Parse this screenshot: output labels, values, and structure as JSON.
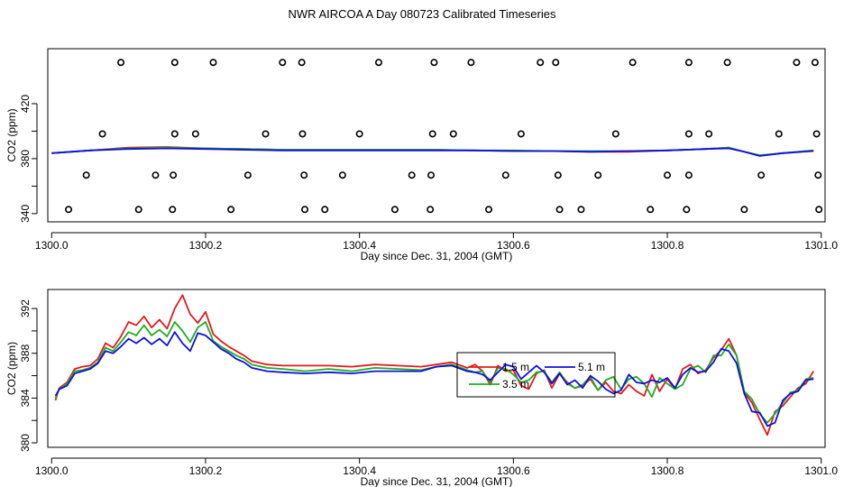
{
  "title": "NWR AIRCOA A  Day 080723  Calibrated Timeseries",
  "colors": {
    "red": "#e31a1c",
    "green": "#1fae1f",
    "blue": "#1010dd",
    "marker": "#000000"
  },
  "chart_data": [
    {
      "type": "line",
      "panel": "top",
      "xlabel": "Day since Dec. 31, 2004 (GMT)",
      "ylabel": "CO2 (ppm)",
      "xlim": [
        1299.995,
        1301.005
      ],
      "ylim": [
        334,
        460
      ],
      "xticks": [
        1300.0,
        1300.2,
        1300.4,
        1300.6,
        1300.8,
        1301.0
      ],
      "xtick_labels": [
        "1300.0",
        "1300.2",
        "1300.4",
        "1300.6",
        "1300.8",
        "1301.0"
      ],
      "yticks": [
        340,
        360,
        380,
        400,
        420
      ],
      "ytick_labels": [
        "340",
        "380",
        "420"
      ],
      "ytick_label_values": [
        340,
        380,
        420
      ],
      "series": [
        {
          "name": "red",
          "color": "red",
          "x": [
            1300.0,
            1300.05,
            1300.1,
            1300.15,
            1300.2,
            1300.3,
            1300.4,
            1300.5,
            1300.55,
            1300.6,
            1300.65,
            1300.7,
            1300.75,
            1300.8,
            1300.85,
            1300.88,
            1300.9,
            1300.92,
            1300.95,
            1300.99
          ],
          "y": [
            384,
            386,
            388,
            388.5,
            387.5,
            386.5,
            386.5,
            386.5,
            386,
            385.5,
            385.5,
            385,
            385,
            386,
            387,
            388,
            385,
            382,
            384,
            386
          ]
        },
        {
          "name": "green",
          "color": "green",
          "x": [
            1300.0,
            1300.05,
            1300.1,
            1300.15,
            1300.2,
            1300.3,
            1300.4,
            1300.5,
            1300.55,
            1300.6,
            1300.65,
            1300.7,
            1300.75,
            1300.8,
            1300.85,
            1300.88,
            1300.9,
            1300.92,
            1300.95,
            1300.99
          ],
          "y": [
            384,
            386,
            387.5,
            388,
            387.5,
            386.5,
            386.5,
            386.5,
            386,
            386,
            385.5,
            385.5,
            385.5,
            386,
            387,
            388,
            385,
            382.5,
            384,
            386
          ]
        },
        {
          "name": "blue",
          "color": "blue",
          "x": [
            1300.0,
            1300.05,
            1300.1,
            1300.15,
            1300.2,
            1300.3,
            1300.4,
            1300.5,
            1300.55,
            1300.6,
            1300.65,
            1300.7,
            1300.75,
            1300.8,
            1300.85,
            1300.88,
            1300.9,
            1300.92,
            1300.95,
            1300.99
          ],
          "y": [
            384,
            386,
            387,
            387.5,
            387,
            386,
            386,
            386,
            386,
            385.5,
            385.5,
            385,
            385.5,
            386,
            387,
            387.5,
            385,
            382,
            384,
            385.5
          ]
        }
      ],
      "markers": {
        "shape": "open-circle",
        "rows": [
          {
            "y": 450,
            "x": [
              1300.09,
              1300.16,
              1300.21,
              1300.3,
              1300.325,
              1300.425,
              1300.497,
              1300.545,
              1300.635,
              1300.655,
              1300.755,
              1300.828,
              1300.878,
              1300.968,
              1300.992
            ]
          },
          {
            "y": 398,
            "x": [
              1300.066,
              1300.16,
              1300.187,
              1300.278,
              1300.326,
              1300.4,
              1300.495,
              1300.522,
              1300.61,
              1300.733,
              1300.828,
              1300.854,
              1300.945,
              1300.994
            ]
          },
          {
            "y": 368,
            "x": [
              1300.045,
              1300.135,
              1300.158,
              1300.255,
              1300.328,
              1300.378,
              1300.468,
              1300.493,
              1300.59,
              1300.658,
              1300.71,
              1300.8,
              1300.828,
              1300.922,
              1300.996
            ]
          },
          {
            "y": 343,
            "x": [
              1300.022,
              1300.113,
              1300.157,
              1300.233,
              1300.329,
              1300.355,
              1300.446,
              1300.492,
              1300.568,
              1300.66,
              1300.688,
              1300.778,
              1300.825,
              1300.9,
              1300.997
            ]
          }
        ]
      }
    },
    {
      "type": "line",
      "panel": "bottom",
      "xlabel": "Day since Dec. 31, 2004 (GMT)",
      "ylabel": "CO2 (ppm)",
      "xlim": [
        1299.995,
        1301.005
      ],
      "ylim": [
        379.6,
        393.7
      ],
      "xticks": [
        1300.0,
        1300.2,
        1300.4,
        1300.6,
        1300.8,
        1301.0
      ],
      "xtick_labels": [
        "1300.0",
        "1300.2",
        "1300.4",
        "1300.6",
        "1300.8",
        "1301.0"
      ],
      "yticks": [
        380,
        382,
        384,
        386,
        388,
        390,
        392
      ],
      "ytick_labels": [
        "380",
        "384",
        "388",
        "392"
      ],
      "ytick_label_values": [
        380,
        384,
        388,
        392
      ],
      "legend": {
        "placement": "center-right",
        "entries": [
          {
            "label": "1.5 m",
            "color": "red"
          },
          {
            "label": "3.5 m",
            "color": "green"
          },
          {
            "label": "5.1 m",
            "color": "blue"
          }
        ]
      },
      "series": [
        {
          "name": "1.5 m",
          "color": "red",
          "x": [
            1300.005,
            1300.01,
            1300.02,
            1300.03,
            1300.04,
            1300.05,
            1300.06,
            1300.07,
            1300.08,
            1300.09,
            1300.1,
            1300.11,
            1300.12,
            1300.13,
            1300.14,
            1300.15,
            1300.16,
            1300.17,
            1300.18,
            1300.19,
            1300.2,
            1300.21,
            1300.22,
            1300.23,
            1300.24,
            1300.25,
            1300.26,
            1300.28,
            1300.3,
            1300.33,
            1300.36,
            1300.39,
            1300.42,
            1300.45,
            1300.48,
            1300.5,
            1300.52,
            1300.54,
            1300.55,
            1300.56,
            1300.57,
            1300.58,
            1300.59,
            1300.6,
            1300.61,
            1300.62,
            1300.63,
            1300.64,
            1300.65,
            1300.66,
            1300.67,
            1300.68,
            1300.69,
            1300.7,
            1300.71,
            1300.72,
            1300.73,
            1300.74,
            1300.75,
            1300.76,
            1300.77,
            1300.78,
            1300.79,
            1300.8,
            1300.81,
            1300.82,
            1300.83,
            1300.84,
            1300.85,
            1300.86,
            1300.87,
            1300.88,
            1300.89,
            1300.9,
            1300.91,
            1300.92,
            1300.93,
            1300.94,
            1300.95,
            1300.96,
            1300.97,
            1300.98,
            1300.99
          ],
          "y": [
            383.8,
            384.9,
            385.4,
            386.6,
            386.8,
            386.9,
            387.5,
            388.9,
            388.5,
            389.5,
            390.8,
            390.5,
            391.3,
            390.3,
            391,
            390.2,
            392,
            393.2,
            391.5,
            390.7,
            391.7,
            389.7,
            389.1,
            388.6,
            388.2,
            387.8,
            387.3,
            387,
            386.9,
            386.9,
            386.9,
            386.8,
            387,
            386.9,
            386.8,
            387,
            387.2,
            386.7,
            387,
            386.4,
            385.2,
            386.9,
            386.4,
            386.5,
            385.1,
            384.8,
            386.2,
            386.5,
            384.9,
            386.2,
            385.4,
            384.9,
            385.1,
            385.7,
            384.7,
            385.4,
            384.6,
            384.4,
            385.2,
            384.6,
            384.2,
            386.1,
            384.6,
            385.7,
            384.8,
            386.6,
            387,
            386.2,
            386.5,
            387.6,
            388.3,
            389.3,
            387.8,
            384.5,
            383.6,
            382.1,
            380.7,
            382.8,
            383.3,
            384.1,
            384.9,
            385.3,
            386.4
          ]
        },
        {
          "name": "3.5 m",
          "color": "green",
          "x": [
            1300.005,
            1300.01,
            1300.02,
            1300.03,
            1300.04,
            1300.05,
            1300.06,
            1300.07,
            1300.08,
            1300.09,
            1300.1,
            1300.11,
            1300.12,
            1300.13,
            1300.14,
            1300.15,
            1300.16,
            1300.17,
            1300.18,
            1300.19,
            1300.2,
            1300.21,
            1300.22,
            1300.23,
            1300.24,
            1300.25,
            1300.26,
            1300.28,
            1300.3,
            1300.33,
            1300.36,
            1300.39,
            1300.42,
            1300.45,
            1300.48,
            1300.5,
            1300.52,
            1300.54,
            1300.55,
            1300.56,
            1300.57,
            1300.58,
            1300.59,
            1300.6,
            1300.61,
            1300.62,
            1300.63,
            1300.64,
            1300.65,
            1300.66,
            1300.67,
            1300.68,
            1300.69,
            1300.7,
            1300.71,
            1300.72,
            1300.73,
            1300.74,
            1300.75,
            1300.76,
            1300.77,
            1300.78,
            1300.79,
            1300.8,
            1300.81,
            1300.82,
            1300.83,
            1300.84,
            1300.85,
            1300.86,
            1300.87,
            1300.88,
            1300.89,
            1300.9,
            1300.91,
            1300.92,
            1300.93,
            1300.94,
            1300.95,
            1300.96,
            1300.97,
            1300.98,
            1300.99
          ],
          "y": [
            384,
            384.8,
            385.3,
            386.4,
            386.5,
            386.7,
            387.2,
            388.5,
            388.2,
            389,
            389.9,
            389.6,
            390.5,
            389.6,
            390.1,
            389.5,
            390.8,
            390,
            389,
            390.3,
            390.8,
            389.1,
            388.6,
            388.2,
            387.8,
            387.5,
            387,
            386.7,
            386.6,
            386.4,
            386.6,
            386.4,
            386.7,
            386.6,
            386.5,
            386.8,
            387,
            386.5,
            386.3,
            386.4,
            385.4,
            386.7,
            386.6,
            386.1,
            385.4,
            385.6,
            386.3,
            386.4,
            385.4,
            386.3,
            385.3,
            384.9,
            385.2,
            385.9,
            384.7,
            385.6,
            385.9,
            384.8,
            385.7,
            385.9,
            385.3,
            384.1,
            385.8,
            385.3,
            384.8,
            385.2,
            386.6,
            386.9,
            386.3,
            387.8,
            387.8,
            388.8,
            387.8,
            384.6,
            383.9,
            382.6,
            381.8,
            382.6,
            383.6,
            384.5,
            384.7,
            385.7,
            385.8
          ]
        },
        {
          "name": "5.1 m",
          "color": "blue",
          "x": [
            1300.005,
            1300.01,
            1300.02,
            1300.03,
            1300.04,
            1300.05,
            1300.06,
            1300.07,
            1300.08,
            1300.09,
            1300.1,
            1300.11,
            1300.12,
            1300.13,
            1300.14,
            1300.15,
            1300.16,
            1300.17,
            1300.18,
            1300.19,
            1300.2,
            1300.21,
            1300.22,
            1300.23,
            1300.24,
            1300.25,
            1300.26,
            1300.28,
            1300.3,
            1300.33,
            1300.36,
            1300.39,
            1300.42,
            1300.45,
            1300.48,
            1300.5,
            1300.52,
            1300.54,
            1300.55,
            1300.56,
            1300.57,
            1300.58,
            1300.59,
            1300.6,
            1300.61,
            1300.62,
            1300.63,
            1300.64,
            1300.65,
            1300.66,
            1300.67,
            1300.68,
            1300.69,
            1300.7,
            1300.71,
            1300.72,
            1300.73,
            1300.74,
            1300.75,
            1300.76,
            1300.77,
            1300.78,
            1300.79,
            1300.8,
            1300.81,
            1300.82,
            1300.83,
            1300.84,
            1300.85,
            1300.86,
            1300.87,
            1300.88,
            1300.89,
            1300.9,
            1300.91,
            1300.92,
            1300.93,
            1300.94,
            1300.95,
            1300.96,
            1300.97,
            1300.98,
            1300.99
          ],
          "y": [
            384.2,
            384.8,
            385.1,
            386.2,
            386.4,
            386.6,
            387.1,
            388.2,
            388,
            388.6,
            389.3,
            388.9,
            389.4,
            388.8,
            389.3,
            388.7,
            389.9,
            388.9,
            388.2,
            389.8,
            389.6,
            389,
            388.4,
            388,
            387.5,
            387.2,
            386.7,
            386.4,
            386.3,
            386.2,
            386.3,
            386.2,
            386.4,
            386.4,
            386.4,
            386.8,
            386.9,
            386.4,
            386.3,
            386.1,
            385.6,
            386.3,
            387,
            386.8,
            385.7,
            386.3,
            386.9,
            386.3,
            385.3,
            386.2,
            385.2,
            385.6,
            384.9,
            386,
            385.5,
            384.8,
            384.4,
            384.7,
            386.1,
            385.4,
            385.3,
            385.6,
            385.4,
            385.8,
            384.9,
            386.1,
            386.7,
            386.3,
            386.4,
            387.2,
            388.4,
            388.2,
            387.1,
            384.4,
            382.8,
            382.7,
            381.5,
            381.8,
            383.8,
            384.4,
            384.6,
            385.6,
            385.7
          ]
        }
      ]
    }
  ]
}
